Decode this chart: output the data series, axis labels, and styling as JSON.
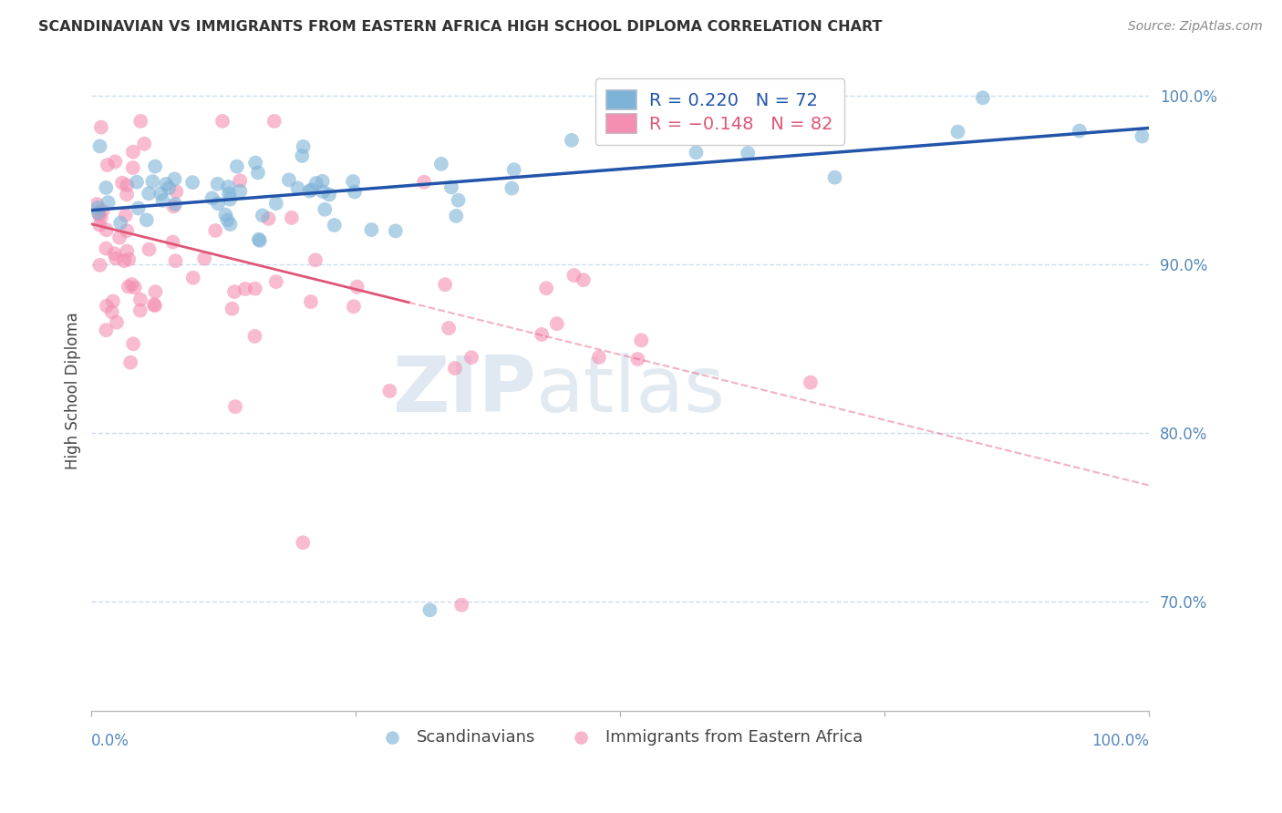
{
  "title": "SCANDINAVIAN VS IMMIGRANTS FROM EASTERN AFRICA HIGH SCHOOL DIPLOMA CORRELATION CHART",
  "source": "Source: ZipAtlas.com",
  "ylabel": "High School Diploma",
  "xlim": [
    0.0,
    1.0
  ],
  "ylim": [
    0.635,
    1.015
  ],
  "legend_r1": "R = 0.220",
  "legend_n1": "N = 72",
  "legend_r2": "R = -0.148",
  "legend_n2": "N = 82",
  "blue_color": "#7EB3D8",
  "pink_color": "#F48FB1",
  "blue_line_color": "#2255AA",
  "pink_line_color": "#E05577",
  "watermark_zip": "ZIP",
  "watermark_atlas": "atlas",
  "background": "#FFFFFF",
  "title_color": "#333333",
  "tick_color": "#5588BB",
  "grid_color": "#CCDDEE",
  "pink_line_solid_cutoff": 0.3,
  "scan_seed": 7,
  "east_seed": 13
}
